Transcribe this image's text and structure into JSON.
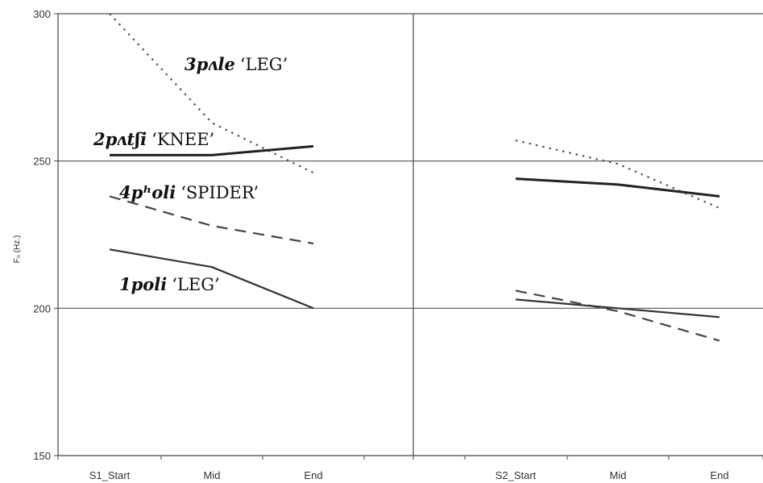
{
  "chart_data": {
    "type": "line",
    "ylabel": "F₀ (Hz.)",
    "ylim": [
      150,
      300
    ],
    "yticks": [
      150,
      200,
      250,
      300
    ],
    "grid": true,
    "panels": [
      {
        "categories": [
          "S1_Start",
          "Mid",
          "End"
        ],
        "series": [
          {
            "name": "3pʌle ‘LEG’",
            "word": "3pʌle",
            "gloss": "‘LEG’",
            "style": "dotted",
            "values": [
              300,
              263,
              246
            ]
          },
          {
            "name": "2pʌtʃi ‘KNEE’",
            "word": "2pʌtʃi",
            "gloss": "‘KNEE’",
            "style": "solid-bold",
            "values": [
              252,
              252,
              255
            ]
          },
          {
            "name": "4pʰoli ‘SPIDER’",
            "word": "4pʰoli",
            "gloss": "‘SPIDER’",
            "style": "dashed",
            "values": [
              238,
              228,
              222
            ]
          },
          {
            "name": "1poli ‘LEG’",
            "word": "1poli",
            "gloss": "‘LEG’",
            "style": "solid",
            "values": [
              220,
              214,
              200
            ]
          }
        ]
      },
      {
        "categories": [
          "S2_Start",
          "Mid",
          "End"
        ],
        "series": [
          {
            "style": "dotted",
            "values": [
              257,
              249,
              234
            ]
          },
          {
            "style": "solid-bold",
            "values": [
              244,
              242,
              238
            ]
          },
          {
            "style": "dashed",
            "values": [
              206,
              199,
              189
            ]
          },
          {
            "style": "solid",
            "values": [
              203,
              200,
              197
            ]
          }
        ]
      }
    ]
  }
}
